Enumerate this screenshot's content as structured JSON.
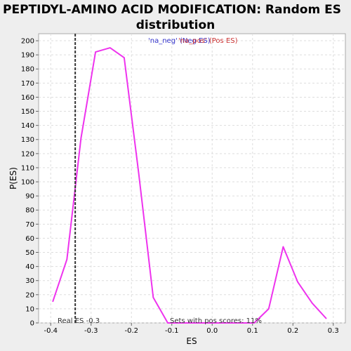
{
  "chart_data": {
    "type": "line",
    "title_line1": "PEPTIDYL-AMINO ACID MODIFICATION: Random ES",
    "title_line2": "distribution",
    "xlabel": "ES",
    "ylabel": "P(ES)",
    "xlim": [
      -0.43,
      0.33
    ],
    "ylim": [
      0,
      205
    ],
    "xticks": [
      -0.4,
      -0.3,
      -0.2,
      -0.1,
      0.0,
      0.1,
      0.2,
      0.3
    ],
    "xtick_labels": [
      "-0.4",
      "-0.3",
      "-0.2",
      "-0.1",
      "0.0",
      "0.1",
      "0.2",
      "0.3"
    ],
    "yticks": [
      0,
      10,
      20,
      30,
      40,
      50,
      60,
      70,
      80,
      90,
      100,
      110,
      120,
      130,
      140,
      150,
      160,
      170,
      180,
      190,
      200
    ],
    "grid": true,
    "legend": {
      "placement": "top-center",
      "entries": [
        {
          "label": "'na_neg' (Neg ES)",
          "color": "#3333cc"
        },
        {
          "label": "'na_pos' (Pos ES)",
          "color": "#cc3333"
        }
      ]
    },
    "series": [
      {
        "color": "#ee33ee",
        "x": [
          -0.395,
          -0.36,
          -0.325,
          -0.289,
          -0.253,
          -0.218,
          -0.182,
          -0.146,
          -0.11,
          -0.075,
          -0.039,
          -0.003,
          0.033,
          0.068,
          0.104,
          0.14,
          0.176,
          0.212,
          0.248,
          0.283
        ],
        "y": [
          15,
          45,
          131,
          192,
          195,
          188,
          106,
          18,
          0,
          0,
          0,
          0,
          0,
          0,
          0,
          10,
          54,
          29,
          14,
          3
        ]
      }
    ],
    "real_es": -0.3393,
    "real_es_color": "#333333",
    "annotations": {
      "real_es_label": "Real ES -0.3",
      "pos_scores_label": "Sets with pos scores: 11%"
    }
  }
}
